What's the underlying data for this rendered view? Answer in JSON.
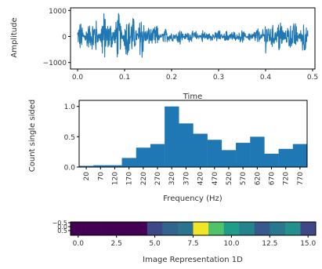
{
  "colors": {
    "signal": "#1f77b4",
    "bars": "#1f77b4",
    "axis": "#000000",
    "text": "#333333"
  },
  "chart_data": [
    {
      "type": "line",
      "xlabel": "Time",
      "ylabel": "Amplitude",
      "xlim": [
        -0.015,
        0.505
      ],
      "ylim": [
        -1250,
        1100
      ],
      "xticks": [
        0.0,
        0.1,
        0.2,
        0.3,
        0.4,
        0.5
      ],
      "xtick_labels": [
        "0.0",
        "0.1",
        "0.2",
        "0.3",
        "0.4",
        "0.5"
      ],
      "yticks": [
        1000,
        0,
        -1000
      ],
      "ytick_labels": [
        "1000",
        "0",
        "−1000"
      ],
      "envelope": {
        "x": [
          0.0,
          0.03,
          0.05,
          0.08,
          0.1,
          0.13,
          0.15,
          0.18,
          0.22,
          0.26,
          0.3,
          0.34,
          0.37,
          0.4,
          0.42,
          0.45,
          0.48,
          0.49
        ],
        "amp": [
          500,
          800,
          1100,
          900,
          950,
          1050,
          650,
          320,
          280,
          250,
          250,
          250,
          220,
          650,
          750,
          700,
          680,
          600
        ]
      }
    },
    {
      "type": "bar",
      "xlabel": "Frequency (Hz)",
      "ylabel": "Count single sided",
      "categories": [
        "20",
        "70",
        "120",
        "170",
        "220",
        "270",
        "320",
        "370",
        "420",
        "470",
        "520",
        "570",
        "620",
        "670",
        "720",
        "770"
      ],
      "tick_labels": [
        "20",
        "70",
        "120",
        "170",
        "220",
        "270",
        "320",
        "370",
        "420",
        "470",
        "520",
        "570",
        "620",
        "670",
        "720",
        "770"
      ],
      "values": [
        0.02,
        0.03,
        0.03,
        0.15,
        0.32,
        0.38,
        1.0,
        0.72,
        0.55,
        0.45,
        0.28,
        0.4,
        0.5,
        0.22,
        0.3,
        0.38
      ],
      "ylim": [
        0,
        1.1
      ],
      "yticks": [
        0.0,
        0.5,
        1.0
      ],
      "ytick_labels": [
        "0.0",
        "0.5",
        "1.0"
      ]
    },
    {
      "type": "heatmap",
      "xlabel": "Image Representation 1D",
      "colormap": "viridis",
      "values": [
        0.0,
        0.0,
        0.0,
        0.0,
        0.0,
        0.22,
        0.32,
        0.38,
        0.98,
        0.72,
        0.55,
        0.45,
        0.28,
        0.4,
        0.5,
        0.22
      ],
      "xlim": [
        -0.5,
        15.5
      ],
      "xticks": [
        0.0,
        2.5,
        5.0,
        7.5,
        10.0,
        12.5,
        15.0
      ],
      "xtick_labels": [
        "0.0",
        "2.5",
        "5.0",
        "7.5",
        "10.0",
        "12.5",
        "15.0"
      ],
      "ytick_labels": [
        "−0.5",
        "0.0",
        "0.5"
      ]
    }
  ]
}
